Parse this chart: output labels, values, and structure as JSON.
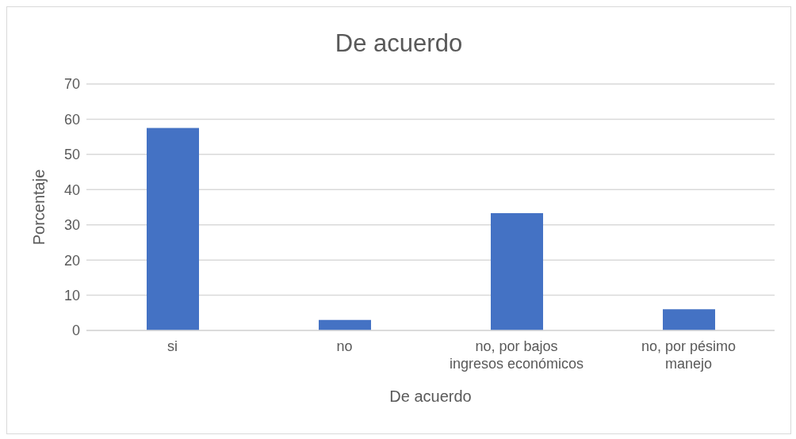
{
  "chart_data": {
    "type": "bar",
    "title": "De acuerdo",
    "xlabel": "De acuerdo",
    "ylabel": "Porcentaje",
    "categories": [
      "si",
      "no",
      "no, por bajos ingresos económicos",
      "no, por pésimo manejo"
    ],
    "values": [
      57.5,
      3.0,
      33.3,
      6.0
    ],
    "color": "#4472c4",
    "ylim": [
      0,
      70
    ],
    "yticks": [
      0,
      10,
      20,
      30,
      40,
      50,
      60,
      70
    ],
    "grid": "y",
    "legend": false
  }
}
